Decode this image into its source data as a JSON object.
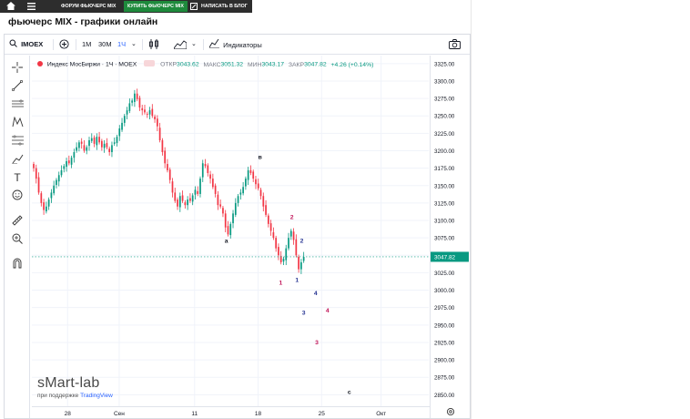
{
  "nav": {
    "items": [
      "ФОРУМ ФЬЮЧЕРС MIX",
      "КУПИТЬ ФЬЮЧЕРС MIX",
      "НАПИСАТЬ В БЛОГ"
    ]
  },
  "page": {
    "title": "фьючерс MIX - графики онлайн"
  },
  "toolbar": {
    "symbol": "IMOEX",
    "intervals": [
      "1M",
      "30M",
      "1Ч"
    ],
    "indicators_label": "Индикаторы"
  },
  "legend": {
    "name": "Индекс МосБиржи · 1Ч · MOEX",
    "open_label": "ОТКР",
    "open": "3043.62",
    "high_label": "МАКС",
    "high": "3051.32",
    "low_label": "МИН",
    "low": "3043.17",
    "close_label": "ЗАКР",
    "close": "3047.82",
    "change": "+4.26 (+0.14%)"
  },
  "watermark": {
    "logo": "sMart-lab",
    "sub_prefix": "при поддержке",
    "sub_link": "TradingView"
  },
  "colors": {
    "up": "#089981",
    "down": "#f23645",
    "nav_dark": "#2d2d2d",
    "nav_green": "#1e8a3c",
    "accent": "#2962ff"
  },
  "chart_data": {
    "type": "candlestick",
    "ylim": [
      2840,
      3330
    ],
    "y_ticks": [
      "3325.00",
      "3300.00",
      "3275.00",
      "3250.00",
      "3225.00",
      "3200.00",
      "3175.00",
      "3150.00",
      "3125.00",
      "3100.00",
      "3075.00",
      "3050.00",
      "3025.00",
      "3000.00",
      "2975.00",
      "2950.00",
      "2925.00",
      "2900.00",
      "2875.00",
      "2850.00"
    ],
    "y_tick_values": [
      3325,
      3300,
      3275,
      3250,
      3225,
      3200,
      3175,
      3150,
      3125,
      3100,
      3075,
      3050,
      3025,
      3000,
      2975,
      2950,
      2925,
      2900,
      2875,
      2850
    ],
    "x_ticks": [
      "28",
      "Сен",
      "11",
      "18",
      "25",
      "Окт"
    ],
    "x_tick_positions": [
      0.09,
      0.22,
      0.41,
      0.57,
      0.73,
      0.88
    ],
    "last_price": "3047.82",
    "last_price_value": 3047.82,
    "series": [
      {
        "name": "close",
        "values": [
          3175,
          3160,
          3140,
          3125,
          3115,
          3120,
          3130,
          3140,
          3150,
          3158,
          3165,
          3172,
          3178,
          3185,
          3182,
          3190,
          3198,
          3205,
          3212,
          3210,
          3200,
          3205,
          3215,
          3218,
          3210,
          3220,
          3212,
          3205,
          3210,
          3205,
          3198,
          3208,
          3212,
          3220,
          3232,
          3240,
          3250,
          3258,
          3268,
          3272,
          3282,
          3274,
          3262,
          3258,
          3255,
          3252,
          3258,
          3250,
          3245,
          3235,
          3215,
          3198,
          3182,
          3172,
          3158,
          3140,
          3128,
          3120,
          3135,
          3128,
          3122,
          3130,
          3128,
          3136,
          3144,
          3138,
          3160,
          3182,
          3178,
          3168,
          3160,
          3148,
          3138,
          3122,
          3120,
          3110,
          3090,
          3080,
          3095,
          3110,
          3125,
          3135,
          3140,
          3148,
          3160,
          3172,
          3168,
          3160,
          3152,
          3146,
          3135,
          3120,
          3108,
          3095,
          3085,
          3075,
          3060,
          3050,
          3040,
          3045,
          3060,
          3075,
          3085,
          3072,
          3050,
          3030,
          3040,
          3047.82
        ]
      }
    ],
    "annotations": [
      {
        "text": "в",
        "x": 0.575,
        "y": 3188,
        "color": "#131722"
      },
      {
        "text": "a",
        "x": 0.49,
        "y": 3068,
        "color": "#131722"
      },
      {
        "text": "2",
        "x": 0.655,
        "y": 3102,
        "color": "#c2185b"
      },
      {
        "text": "2",
        "x": 0.68,
        "y": 3068,
        "color": "#283593"
      },
      {
        "text": "1",
        "x": 0.627,
        "y": 3008,
        "color": "#c2185b"
      },
      {
        "text": "1",
        "x": 0.668,
        "y": 3012,
        "color": "#283593"
      },
      {
        "text": "4",
        "x": 0.715,
        "y": 2993,
        "color": "#283593"
      },
      {
        "text": "3",
        "x": 0.685,
        "y": 2965,
        "color": "#283593"
      },
      {
        "text": "4",
        "x": 0.745,
        "y": 2968,
        "color": "#c2185b"
      },
      {
        "text": "3",
        "x": 0.718,
        "y": 2922,
        "color": "#c2185b"
      },
      {
        "text": "c",
        "x": 0.8,
        "y": 2851,
        "color": "#131722"
      }
    ]
  }
}
